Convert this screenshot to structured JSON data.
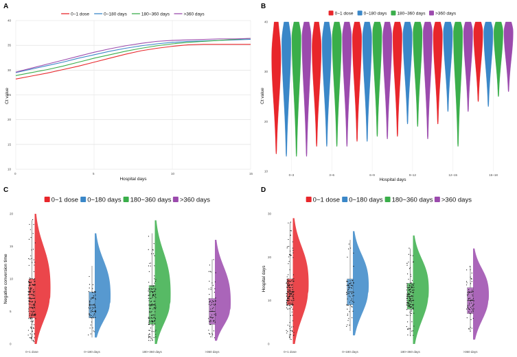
{
  "colors": {
    "c0": "#e8262b",
    "c1": "#3a87c8",
    "c2": "#3aae4a",
    "c3": "#9b4aad"
  },
  "chart_data": [
    {
      "panel": "A",
      "type": "line",
      "title": "",
      "xlabel": "Hospital days",
      "ylabel": "Ct value",
      "xlim": [
        0,
        15
      ],
      "ylim": [
        10,
        40
      ],
      "xticks": [
        "0",
        "5",
        "10",
        "15"
      ],
      "yticks": [
        "10",
        "15",
        "20",
        "25",
        "30",
        "35",
        "40"
      ],
      "legend": [
        "0~1 dose",
        "0~180 days",
        "180~360 days",
        ">360 days"
      ],
      "x": [
        0,
        1,
        2,
        3,
        4,
        5,
        6,
        7,
        8,
        9,
        10,
        11,
        12,
        13,
        14,
        15
      ],
      "series": [
        {
          "name": "0~1 dose",
          "values": [
            28.2,
            28.8,
            29.4,
            30.1,
            30.8,
            31.6,
            32.4,
            33.2,
            33.9,
            34.4,
            34.8,
            35.1,
            35.2,
            35.2,
            35.2,
            35.2
          ]
        },
        {
          "name": "0~180 days",
          "values": [
            29.5,
            30.2,
            30.9,
            31.6,
            32.4,
            33.1,
            33.8,
            34.4,
            34.9,
            35.3,
            35.6,
            35.8,
            35.9,
            36.0,
            36.1,
            36.2
          ]
        },
        {
          "name": "180~360 days",
          "values": [
            28.9,
            29.5,
            30.1,
            30.8,
            31.6,
            32.4,
            33.1,
            33.8,
            34.4,
            34.9,
            35.3,
            35.6,
            35.8,
            36.0,
            36.2,
            36.4
          ]
        },
        {
          "name": ">360 days",
          "values": [
            29.6,
            30.4,
            31.2,
            32.0,
            32.8,
            33.6,
            34.3,
            34.9,
            35.4,
            35.8,
            36.0,
            36.1,
            36.2,
            36.3,
            36.3,
            36.4
          ]
        }
      ]
    },
    {
      "panel": "B",
      "type": "violin",
      "xlabel": "Hospital days",
      "ylabel": "Ct value",
      "ylim": [
        10,
        40
      ],
      "yticks": [
        "10",
        "20",
        "30",
        "40"
      ],
      "legend": [
        "0~1 dose",
        "0~180 days",
        "180~360 days",
        ">360 days"
      ],
      "categories": [
        "0~3",
        "3~6",
        "6~9",
        "9~12",
        "12~15",
        "15~18"
      ],
      "groups": [
        [
          {
            "min": 13.5,
            "max": 40,
            "mode": 33
          },
          {
            "min": 13,
            "max": 40,
            "mode": 36
          },
          {
            "min": 13,
            "max": 40,
            "mode": 37
          },
          {
            "min": 13,
            "max": 40,
            "mode": 37
          }
        ],
        [
          {
            "min": 15,
            "max": 40,
            "mode": 35
          },
          {
            "min": 15,
            "max": 40,
            "mode": 36
          },
          {
            "min": 15,
            "max": 40,
            "mode": 37
          },
          {
            "min": 15,
            "max": 40,
            "mode": 37
          }
        ],
        [
          {
            "min": 16,
            "max": 40,
            "mode": 37
          },
          {
            "min": 16,
            "max": 40,
            "mode": 37
          },
          {
            "min": 17,
            "max": 40,
            "mode": 38
          },
          {
            "min": 16.5,
            "max": 40,
            "mode": 37
          }
        ],
        [
          {
            "min": 17,
            "max": 40,
            "mode": 37.5
          },
          {
            "min": 19.5,
            "max": 40,
            "mode": 37.5
          },
          {
            "min": 19,
            "max": 40,
            "mode": 38
          },
          {
            "min": 16.5,
            "max": 40,
            "mode": 38
          }
        ],
        [
          {
            "min": 19.5,
            "max": 40,
            "mode": 37.5
          },
          {
            "min": 22,
            "max": 40,
            "mode": 38
          },
          {
            "min": 15,
            "max": 40,
            "mode": 38
          },
          {
            "min": 22,
            "max": 40,
            "mode": 38
          }
        ],
        [
          {
            "min": 24,
            "max": 40,
            "mode": 38
          },
          {
            "min": 23,
            "max": 40,
            "mode": 38
          },
          {
            "min": 25,
            "max": 40,
            "mode": 38
          },
          {
            "min": 26,
            "max": 40,
            "mode": 38
          }
        ]
      ]
    },
    {
      "panel": "C",
      "type": "raincloud",
      "xlabel": "",
      "ylabel": "Negative conversion time",
      "ylim": [
        0,
        20
      ],
      "yticks": [
        "0",
        "5",
        "10",
        "15",
        "20"
      ],
      "legend": [
        "0~1 dose",
        "0~180 days",
        "180~360 days",
        ">360 days"
      ],
      "categories": [
        "0~1 dose",
        "0~180 days",
        "180~360 days",
        ">360 days"
      ],
      "groups": [
        {
          "q1": 4,
          "median": 7,
          "q3": 10,
          "whisker_low": 0.5,
          "whisker_high": 19,
          "dens_min": 0,
          "dens_max": 20,
          "n": 180
        },
        {
          "q1": 4,
          "median": 6,
          "q3": 8,
          "whisker_low": 1,
          "whisker_high": 12,
          "dens_min": 1,
          "dens_max": 17,
          "n": 70
        },
        {
          "q1": 3,
          "median": 6,
          "q3": 9,
          "whisker_low": 0.5,
          "whisker_high": 17,
          "dens_min": 0,
          "dens_max": 19,
          "n": 150
        },
        {
          "q1": 3,
          "median": 5,
          "q3": 7,
          "whisker_low": 1,
          "whisker_high": 13,
          "dens_min": 0.5,
          "dens_max": 16,
          "n": 70
        }
      ]
    },
    {
      "panel": "D",
      "type": "raincloud",
      "xlabel": "",
      "ylabel": "Hospital days",
      "ylim": [
        0,
        30
      ],
      "yticks": [
        "0",
        "10",
        "20",
        "30"
      ],
      "legend": [
        "0~1 dose",
        "0~180 days",
        "180~360 days",
        ">360 days"
      ],
      "categories": [
        "0~1 dose",
        "0~180 days",
        "180~360 days",
        ">360 days"
      ],
      "groups": [
        {
          "q1": 9,
          "median": 12,
          "q3": 15,
          "whisker_low": 1,
          "whisker_high": 28,
          "dens_min": 0,
          "dens_max": 29,
          "n": 180
        },
        {
          "q1": 9,
          "median": 12,
          "q3": 15,
          "whisker_low": 3,
          "whisker_high": 24,
          "dens_min": 2,
          "dens_max": 26,
          "n": 70
        },
        {
          "q1": 8,
          "median": 11,
          "q3": 14,
          "whisker_low": 2,
          "whisker_high": 22,
          "dens_min": 0,
          "dens_max": 25,
          "n": 150
        },
        {
          "q1": 7,
          "median": 10,
          "q3": 13,
          "whisker_low": 3,
          "whisker_high": 18,
          "dens_min": 1,
          "dens_max": 22,
          "n": 70
        }
      ]
    }
  ]
}
